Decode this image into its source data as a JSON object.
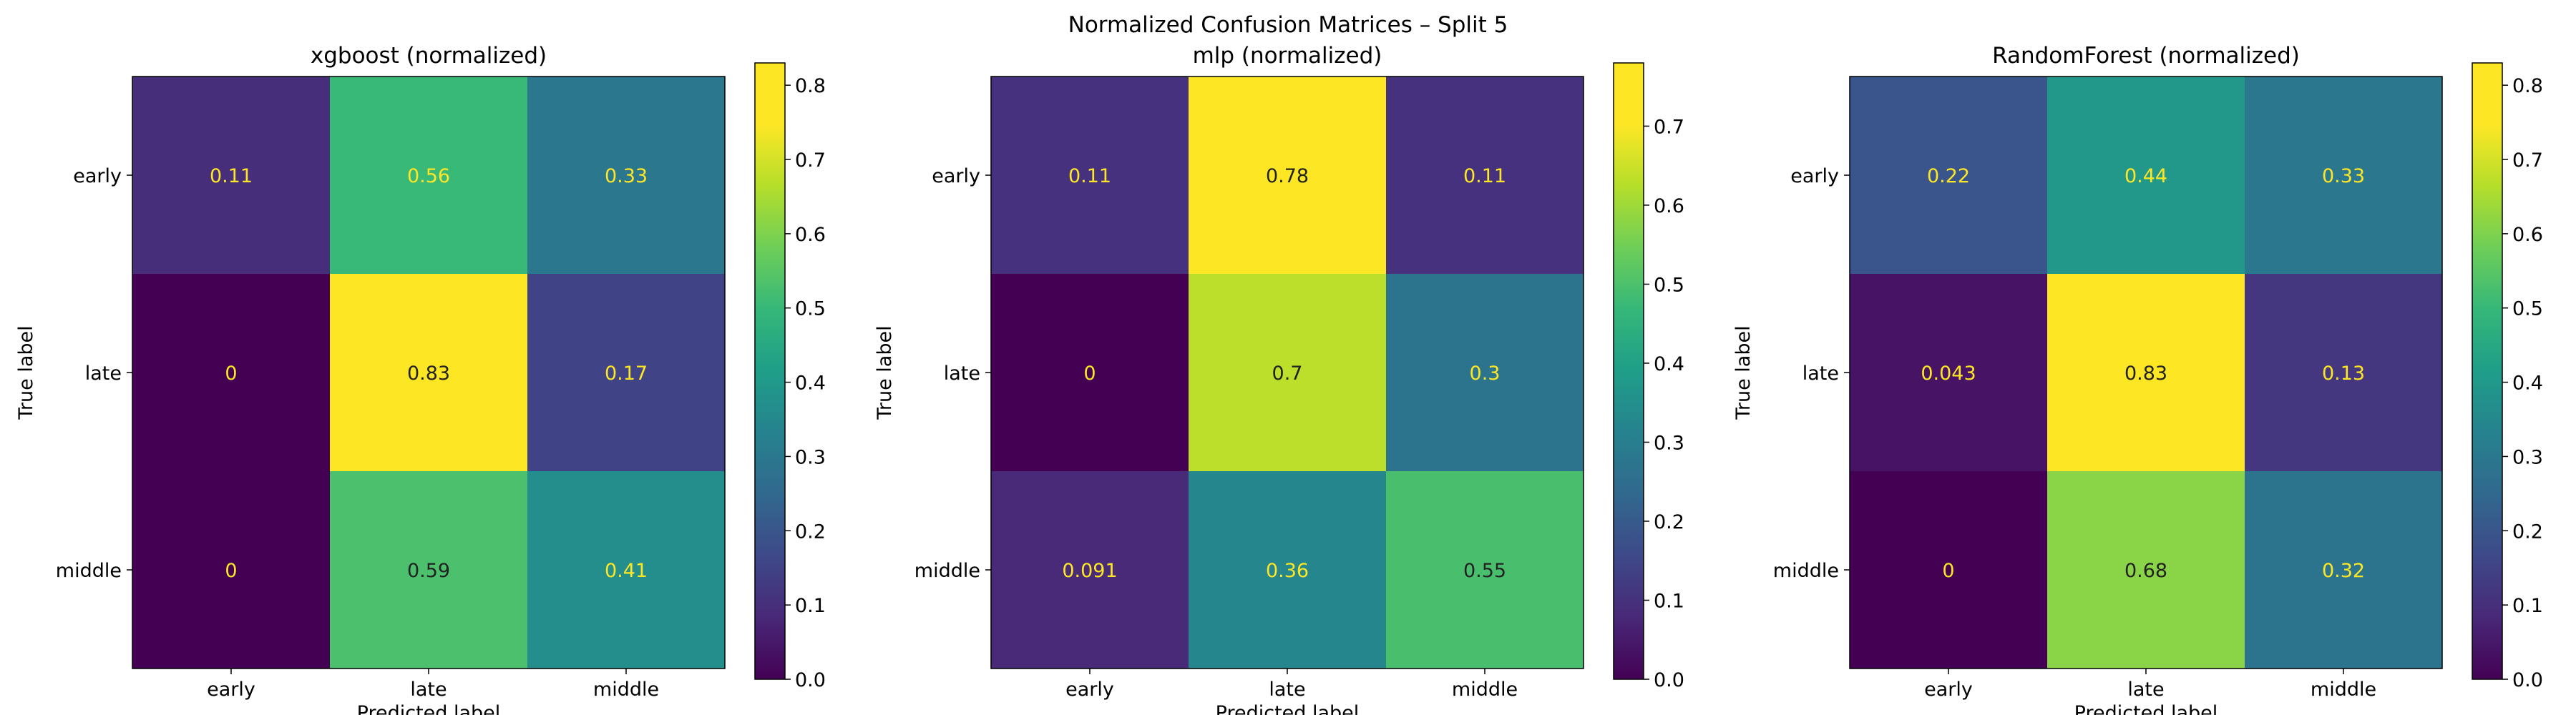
{
  "figure": {
    "suptitle": "Normalized Confusion Matrices – Split 5"
  },
  "chart_data": [
    {
      "type": "heatmap",
      "title": "xgboost (normalized)",
      "xlabel": "Predicted label",
      "ylabel": "True label",
      "x_categories": [
        "early",
        "late",
        "middle"
      ],
      "y_categories": [
        "early",
        "late",
        "middle"
      ],
      "values": [
        [
          0.11,
          0.56,
          0.33
        ],
        [
          0,
          0.83,
          0.17
        ],
        [
          0,
          0.59,
          0.41
        ]
      ],
      "cell_labels": [
        [
          "0.11",
          "0.56",
          "0.33"
        ],
        [
          "0",
          "0.83",
          "0.17"
        ],
        [
          "0",
          "0.59",
          "0.41"
        ]
      ],
      "colormap": "viridis",
      "colorbar": {
        "range": [
          0,
          0.83
        ],
        "ticks": [
          0.0,
          0.1,
          0.2,
          0.3,
          0.4,
          0.5,
          0.6,
          0.7,
          0.8
        ],
        "tick_labels": [
          "0.0",
          "0.1",
          "0.2",
          "0.3",
          "0.4",
          "0.5",
          "0.6",
          "0.7",
          "0.8"
        ]
      }
    },
    {
      "type": "heatmap",
      "title": "mlp (normalized)",
      "xlabel": "Predicted label",
      "ylabel": "True label",
      "x_categories": [
        "early",
        "late",
        "middle"
      ],
      "y_categories": [
        "early",
        "late",
        "middle"
      ],
      "values": [
        [
          0.11,
          0.78,
          0.11
        ],
        [
          0,
          0.7,
          0.3
        ],
        [
          0.091,
          0.36,
          0.55
        ]
      ],
      "cell_labels": [
        [
          "0.11",
          "0.78",
          "0.11"
        ],
        [
          "0",
          "0.7",
          "0.3"
        ],
        [
          "0.091",
          "0.36",
          "0.55"
        ]
      ],
      "colormap": "viridis",
      "colorbar": {
        "range": [
          0,
          0.78
        ],
        "ticks": [
          0.0,
          0.1,
          0.2,
          0.3,
          0.4,
          0.5,
          0.6,
          0.7
        ],
        "tick_labels": [
          "0.0",
          "0.1",
          "0.2",
          "0.3",
          "0.4",
          "0.5",
          "0.6",
          "0.7"
        ]
      }
    },
    {
      "type": "heatmap",
      "title": "RandomForest (normalized)",
      "xlabel": "Predicted label",
      "ylabel": "True label",
      "x_categories": [
        "early",
        "late",
        "middle"
      ],
      "y_categories": [
        "early",
        "late",
        "middle"
      ],
      "values": [
        [
          0.22,
          0.44,
          0.33
        ],
        [
          0.043,
          0.83,
          0.13
        ],
        [
          0,
          0.68,
          0.32
        ]
      ],
      "cell_labels": [
        [
          "0.22",
          "0.44",
          "0.33"
        ],
        [
          "0.043",
          "0.83",
          "0.13"
        ],
        [
          "0",
          "0.68",
          "0.32"
        ]
      ],
      "colormap": "viridis",
      "colorbar": {
        "range": [
          0,
          0.83
        ],
        "ticks": [
          0.0,
          0.1,
          0.2,
          0.3,
          0.4,
          0.5,
          0.6,
          0.7,
          0.8
        ],
        "tick_labels": [
          "0.0",
          "0.1",
          "0.2",
          "0.3",
          "0.4",
          "0.5",
          "0.6",
          "0.7",
          "0.8"
        ]
      }
    }
  ]
}
